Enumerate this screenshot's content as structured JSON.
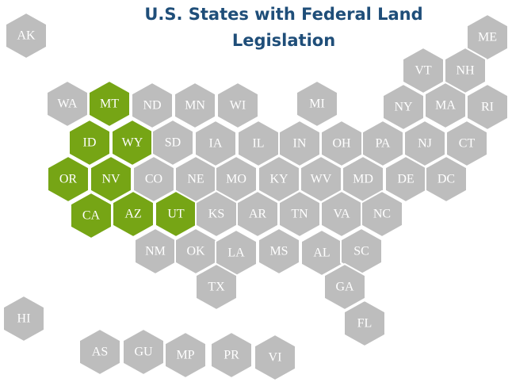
{
  "title": "U.S. States with Federal Land Legislation",
  "default_color": "#bdbdbd",
  "highlight_color": "#76a515",
  "states": [
    {
      "label": "AK",
      "highlighted": false
    },
    {
      "label": "ME",
      "highlighted": false
    },
    {
      "label": "VT",
      "highlighted": false
    },
    {
      "label": "NH",
      "highlighted": false
    },
    {
      "label": "WA",
      "highlighted": false
    },
    {
      "label": "MT",
      "highlighted": true
    },
    {
      "label": "ND",
      "highlighted": false
    },
    {
      "label": "MN",
      "highlighted": false
    },
    {
      "label": "WI",
      "highlighted": false
    },
    {
      "label": "MI",
      "highlighted": false
    },
    {
      "label": "NY",
      "highlighted": false
    },
    {
      "label": "MA",
      "highlighted": false
    },
    {
      "label": "RI",
      "highlighted": false
    },
    {
      "label": "ID",
      "highlighted": true
    },
    {
      "label": "WY",
      "highlighted": true
    },
    {
      "label": "SD",
      "highlighted": false
    },
    {
      "label": "IA",
      "highlighted": false
    },
    {
      "label": "IL",
      "highlighted": false
    },
    {
      "label": "IN",
      "highlighted": false
    },
    {
      "label": "OH",
      "highlighted": false
    },
    {
      "label": "PA",
      "highlighted": false
    },
    {
      "label": "NJ",
      "highlighted": false
    },
    {
      "label": "CT",
      "highlighted": false
    },
    {
      "label": "OR",
      "highlighted": true
    },
    {
      "label": "NV",
      "highlighted": true
    },
    {
      "label": "CO",
      "highlighted": false
    },
    {
      "label": "NE",
      "highlighted": false
    },
    {
      "label": "MO",
      "highlighted": false
    },
    {
      "label": "KY",
      "highlighted": false
    },
    {
      "label": "WV",
      "highlighted": false
    },
    {
      "label": "MD",
      "highlighted": false
    },
    {
      "label": "DE",
      "highlighted": false
    },
    {
      "label": "DC",
      "highlighted": false
    },
    {
      "label": "CA",
      "highlighted": true
    },
    {
      "label": "AZ",
      "highlighted": true
    },
    {
      "label": "UT",
      "highlighted": true
    },
    {
      "label": "KS",
      "highlighted": false
    },
    {
      "label": "AR",
      "highlighted": false
    },
    {
      "label": "TN",
      "highlighted": false
    },
    {
      "label": "VA",
      "highlighted": false
    },
    {
      "label": "NC",
      "highlighted": false
    },
    {
      "label": "NM",
      "highlighted": false
    },
    {
      "label": "OK",
      "highlighted": false
    },
    {
      "label": "LA",
      "highlighted": false
    },
    {
      "label": "MS",
      "highlighted": false
    },
    {
      "label": "AL",
      "highlighted": false
    },
    {
      "label": "SC",
      "highlighted": false
    },
    {
      "label": "TX",
      "highlighted": false
    },
    {
      "label": "GA",
      "highlighted": false
    },
    {
      "label": "FL",
      "highlighted": false
    },
    {
      "label": "HI",
      "highlighted": false
    },
    {
      "label": "AS",
      "highlighted": false
    },
    {
      "label": "GU",
      "highlighted": false
    },
    {
      "label": "MP",
      "highlighted": false
    },
    {
      "label": "PR",
      "highlighted": false
    },
    {
      "label": "VI",
      "highlighted": false
    }
  ]
}
